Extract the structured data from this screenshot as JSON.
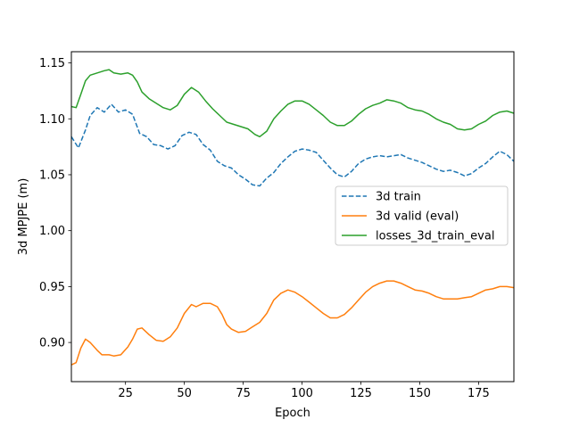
{
  "chart_data": {
    "type": "line",
    "title": "",
    "xlabel": "Epoch",
    "ylabel": "3d MPJPE (m)",
    "xlim": [
      2,
      190
    ],
    "ylim": [
      0.865,
      1.16
    ],
    "x_ticks": [
      25,
      50,
      75,
      100,
      125,
      150,
      175
    ],
    "y_ticks": [
      0.9,
      0.95,
      1.0,
      1.05,
      1.1,
      1.15
    ],
    "x_tick_labels": [
      "25",
      "50",
      "75",
      "100",
      "125",
      "150",
      "175"
    ],
    "y_tick_labels": [
      "0.90",
      "0.95",
      "1.00",
      "1.05",
      "1.10",
      "1.15"
    ],
    "grid": false,
    "legend_position": "center-right",
    "series": [
      {
        "name": "3d train",
        "color": "#1f77b4",
        "style": "dashed",
        "points": [
          [
            2,
            1.084
          ],
          [
            5,
            1.074
          ],
          [
            8,
            1.09
          ],
          [
            10,
            1.103
          ],
          [
            13,
            1.11
          ],
          [
            16,
            1.106
          ],
          [
            19,
            1.113
          ],
          [
            22,
            1.106
          ],
          [
            25,
            1.108
          ],
          [
            28,
            1.104
          ],
          [
            31,
            1.087
          ],
          [
            34,
            1.084
          ],
          [
            37,
            1.077
          ],
          [
            40,
            1.076
          ],
          [
            43,
            1.073
          ],
          [
            46,
            1.076
          ],
          [
            49,
            1.085
          ],
          [
            52,
            1.088
          ],
          [
            55,
            1.086
          ],
          [
            58,
            1.077
          ],
          [
            61,
            1.072
          ],
          [
            64,
            1.062
          ],
          [
            67,
            1.058
          ],
          [
            70,
            1.056
          ],
          [
            73,
            1.05
          ],
          [
            76,
            1.046
          ],
          [
            79,
            1.041
          ],
          [
            82,
            1.04
          ],
          [
            85,
            1.047
          ],
          [
            88,
            1.052
          ],
          [
            91,
            1.06
          ],
          [
            94,
            1.066
          ],
          [
            97,
            1.071
          ],
          [
            100,
            1.073
          ],
          [
            103,
            1.072
          ],
          [
            106,
            1.07
          ],
          [
            109,
            1.063
          ],
          [
            112,
            1.056
          ],
          [
            115,
            1.05
          ],
          [
            118,
            1.048
          ],
          [
            121,
            1.053
          ],
          [
            124,
            1.06
          ],
          [
            127,
            1.064
          ],
          [
            130,
            1.066
          ],
          [
            133,
            1.067
          ],
          [
            136,
            1.066
          ],
          [
            139,
            1.067
          ],
          [
            142,
            1.068
          ],
          [
            145,
            1.065
          ],
          [
            148,
            1.063
          ],
          [
            151,
            1.061
          ],
          [
            154,
            1.058
          ],
          [
            157,
            1.055
          ],
          [
            160,
            1.053
          ],
          [
            163,
            1.054
          ],
          [
            166,
            1.052
          ],
          [
            169,
            1.049
          ],
          [
            172,
            1.051
          ],
          [
            175,
            1.056
          ],
          [
            178,
            1.06
          ],
          [
            181,
            1.066
          ],
          [
            184,
            1.071
          ],
          [
            187,
            1.068
          ],
          [
            190,
            1.062
          ]
        ]
      },
      {
        "name": "3d valid (eval)",
        "color": "#ff7f0e",
        "style": "solid",
        "points": [
          [
            2,
            0.88
          ],
          [
            4,
            0.882
          ],
          [
            6,
            0.895
          ],
          [
            8,
            0.903
          ],
          [
            10,
            0.9
          ],
          [
            13,
            0.893
          ],
          [
            15,
            0.889
          ],
          [
            18,
            0.889
          ],
          [
            20,
            0.888
          ],
          [
            23,
            0.889
          ],
          [
            26,
            0.896
          ],
          [
            28,
            0.903
          ],
          [
            30,
            0.912
          ],
          [
            32,
            0.913
          ],
          [
            35,
            0.907
          ],
          [
            38,
            0.902
          ],
          [
            41,
            0.901
          ],
          [
            44,
            0.905
          ],
          [
            47,
            0.913
          ],
          [
            50,
            0.926
          ],
          [
            53,
            0.934
          ],
          [
            55,
            0.932
          ],
          [
            58,
            0.935
          ],
          [
            61,
            0.935
          ],
          [
            64,
            0.932
          ],
          [
            66,
            0.925
          ],
          [
            68,
            0.916
          ],
          [
            70,
            0.912
          ],
          [
            73,
            0.909
          ],
          [
            76,
            0.91
          ],
          [
            79,
            0.914
          ],
          [
            82,
            0.918
          ],
          [
            85,
            0.926
          ],
          [
            88,
            0.938
          ],
          [
            91,
            0.944
          ],
          [
            94,
            0.947
          ],
          [
            97,
            0.945
          ],
          [
            100,
            0.941
          ],
          [
            103,
            0.936
          ],
          [
            106,
            0.931
          ],
          [
            109,
            0.926
          ],
          [
            112,
            0.922
          ],
          [
            115,
            0.922
          ],
          [
            118,
            0.925
          ],
          [
            121,
            0.931
          ],
          [
            124,
            0.938
          ],
          [
            127,
            0.945
          ],
          [
            130,
            0.95
          ],
          [
            133,
            0.953
          ],
          [
            136,
            0.955
          ],
          [
            139,
            0.955
          ],
          [
            142,
            0.953
          ],
          [
            145,
            0.95
          ],
          [
            148,
            0.947
          ],
          [
            151,
            0.946
          ],
          [
            154,
            0.944
          ],
          [
            157,
            0.941
          ],
          [
            160,
            0.939
          ],
          [
            163,
            0.939
          ],
          [
            166,
            0.939
          ],
          [
            169,
            0.94
          ],
          [
            172,
            0.941
          ],
          [
            175,
            0.944
          ],
          [
            178,
            0.947
          ],
          [
            181,
            0.948
          ],
          [
            184,
            0.95
          ],
          [
            187,
            0.95
          ],
          [
            190,
            0.949
          ]
        ]
      },
      {
        "name": "losses_3d_train_eval",
        "color": "#2ca02c",
        "style": "solid",
        "points": [
          [
            2,
            1.111
          ],
          [
            4,
            1.11
          ],
          [
            6,
            1.122
          ],
          [
            8,
            1.134
          ],
          [
            10,
            1.139
          ],
          [
            13,
            1.141
          ],
          [
            16,
            1.143
          ],
          [
            18,
            1.144
          ],
          [
            20,
            1.141
          ],
          [
            23,
            1.14
          ],
          [
            26,
            1.141
          ],
          [
            28,
            1.139
          ],
          [
            30,
            1.133
          ],
          [
            32,
            1.124
          ],
          [
            35,
            1.118
          ],
          [
            38,
            1.114
          ],
          [
            41,
            1.11
          ],
          [
            44,
            1.108
          ],
          [
            47,
            1.112
          ],
          [
            50,
            1.122
          ],
          [
            53,
            1.128
          ],
          [
            56,
            1.124
          ],
          [
            59,
            1.116
          ],
          [
            62,
            1.109
          ],
          [
            65,
            1.103
          ],
          [
            68,
            1.097
          ],
          [
            71,
            1.095
          ],
          [
            74,
            1.093
          ],
          [
            77,
            1.091
          ],
          [
            80,
            1.086
          ],
          [
            82,
            1.084
          ],
          [
            85,
            1.089
          ],
          [
            88,
            1.1
          ],
          [
            91,
            1.107
          ],
          [
            94,
            1.113
          ],
          [
            97,
            1.116
          ],
          [
            100,
            1.116
          ],
          [
            103,
            1.113
          ],
          [
            106,
            1.108
          ],
          [
            109,
            1.103
          ],
          [
            112,
            1.097
          ],
          [
            115,
            1.094
          ],
          [
            118,
            1.094
          ],
          [
            121,
            1.098
          ],
          [
            124,
            1.104
          ],
          [
            127,
            1.109
          ],
          [
            130,
            1.112
          ],
          [
            133,
            1.114
          ],
          [
            136,
            1.117
          ],
          [
            139,
            1.116
          ],
          [
            142,
            1.114
          ],
          [
            145,
            1.11
          ],
          [
            148,
            1.108
          ],
          [
            151,
            1.107
          ],
          [
            154,
            1.104
          ],
          [
            157,
            1.1
          ],
          [
            160,
            1.097
          ],
          [
            163,
            1.095
          ],
          [
            166,
            1.091
          ],
          [
            169,
            1.09
          ],
          [
            172,
            1.091
          ],
          [
            175,
            1.095
          ],
          [
            178,
            1.098
          ],
          [
            181,
            1.103
          ],
          [
            184,
            1.106
          ],
          [
            187,
            1.107
          ],
          [
            190,
            1.105
          ]
        ]
      }
    ]
  }
}
